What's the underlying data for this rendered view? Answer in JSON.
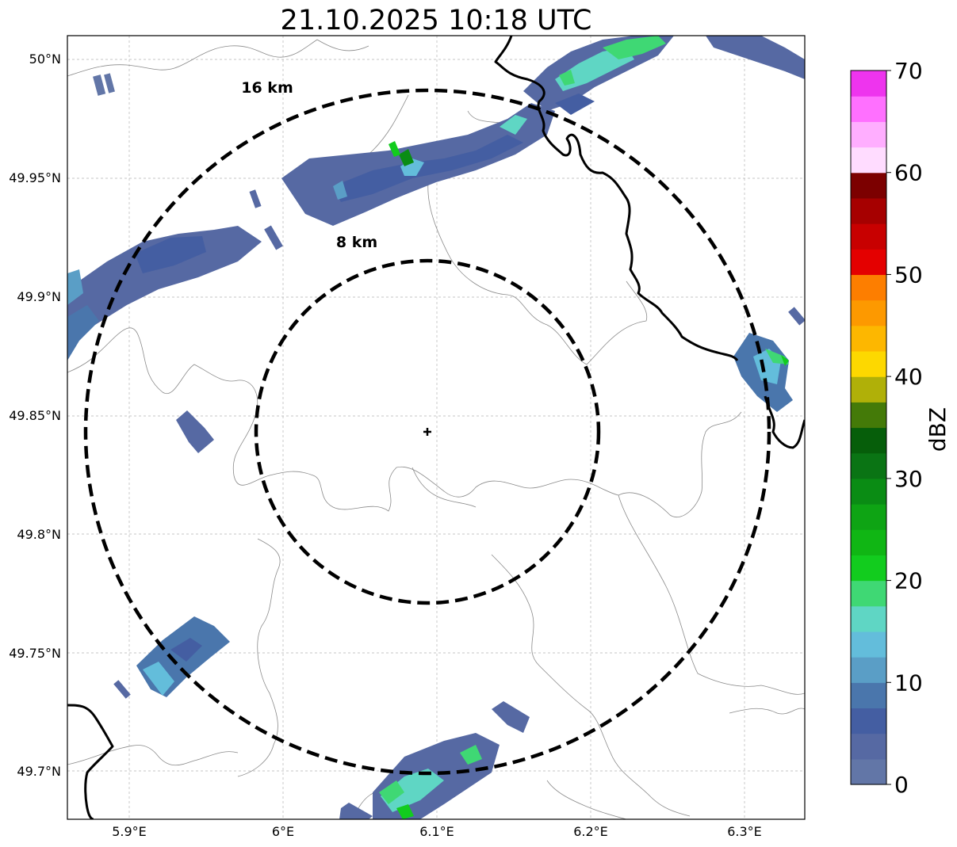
{
  "title": "21.10.2025 10:18 UTC",
  "map": {
    "lon_ticks": [
      "5.9°E",
      "6°E",
      "6.1°E",
      "6.2°E",
      "6.3°E"
    ],
    "lat_ticks": [
      "50°N",
      "49.95°N",
      "49.9°N",
      "49.85°N",
      "49.8°N",
      "49.75°N",
      "49.7°N"
    ],
    "lon_range": [
      5.86,
      6.34
    ],
    "lat_range": [
      49.68,
      50.01
    ],
    "radar_center": {
      "lon": 6.095,
      "lat": 49.843
    },
    "range_rings": [
      {
        "label": "16 km",
        "radius_km": 16
      },
      {
        "label": "8 km",
        "radius_km": 8
      }
    ]
  },
  "colorbar": {
    "label": "dBZ",
    "ticks": [
      "0",
      "10",
      "20",
      "30",
      "40",
      "50",
      "60",
      "70"
    ],
    "min": 0,
    "max": 70,
    "colors": [
      "#6276a7",
      "#5669a3",
      "#445ea2",
      "#4a76ac",
      "#5a9ec6",
      "#63bddb",
      "#5fd6c4",
      "#3fd874",
      "#12cc1e",
      "#10b614",
      "#0ea414",
      "#0a8c14",
      "#0a7414",
      "#065e0a",
      "#447a08",
      "#b0b008",
      "#fdd800",
      "#fdb700",
      "#fd9900",
      "#fd7e00",
      "#e40000",
      "#c80000",
      "#a60000",
      "#7c0000",
      "#ffdcff",
      "#ffaeff",
      "#ff70ff",
      "#ee34ee"
    ]
  }
}
